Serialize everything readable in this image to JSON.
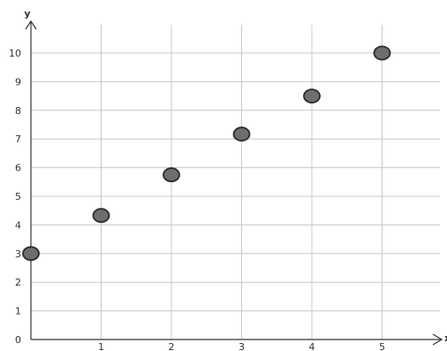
{
  "chart_data": {
    "type": "scatter",
    "title": "",
    "xlabel": "x",
    "ylabel": "y",
    "xlim": [
      0,
      5.8
    ],
    "ylim": [
      0,
      11.2
    ],
    "x_ticks": [
      1,
      2,
      3,
      4,
      5
    ],
    "y_ticks": [
      0,
      1,
      2,
      3,
      4,
      5,
      6,
      7,
      8,
      9,
      10
    ],
    "grid": true,
    "series": [
      {
        "x": [
          0,
          1,
          2,
          3,
          4,
          5
        ],
        "y": [
          3,
          4.33,
          5.75,
          7.17,
          8.5,
          10
        ]
      }
    ],
    "colors": {
      "marker_fill": "#6e6e6e",
      "marker_stroke": "#2b2b2b",
      "grid": "#c8c8c8",
      "axis": "#333333"
    }
  }
}
